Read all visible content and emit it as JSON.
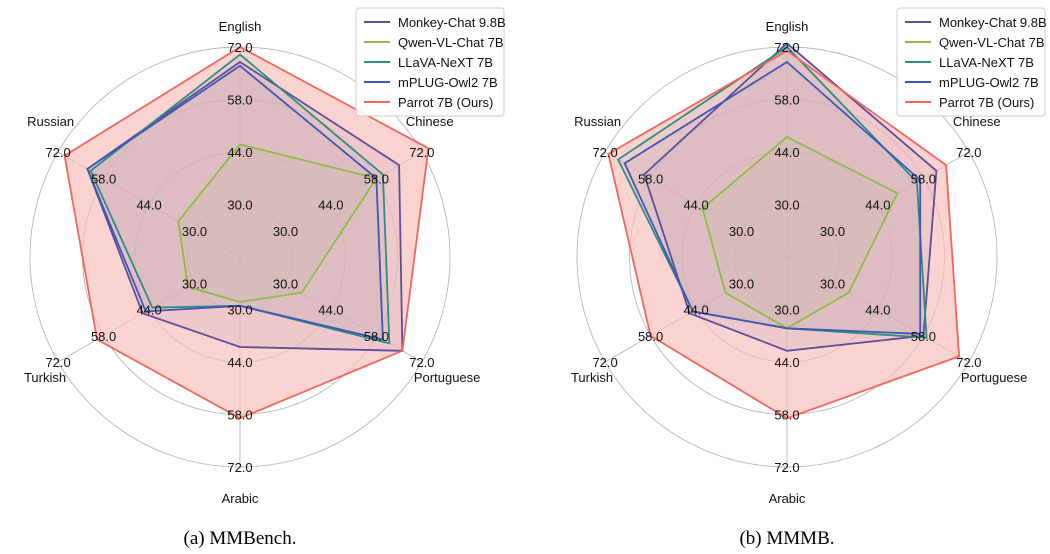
{
  "chart_data": [
    {
      "type": "radar",
      "caption": "(a) MMBench.",
      "axes": [
        "English",
        "Chinese",
        "Portuguese",
        "Arabic",
        "Turkish",
        "Russian"
      ],
      "rlim": [
        16,
        72
      ],
      "ticks": [
        30.0,
        44.0,
        58.0,
        72.0
      ],
      "tick_labels": [
        "30.0",
        "44.0",
        "58.0",
        "72.0"
      ],
      "grid": true,
      "legend_position": "top-right",
      "series": [
        {
          "name": "Monkey-Chat 9.8B",
          "color": "#5b4f9a",
          "values": [
            68,
            65,
            66,
            40,
            46,
            63
          ]
        },
        {
          "name": "Qwen-VL-Chat 7B",
          "color": "#8fbb48",
          "values": [
            46,
            58,
            35,
            28,
            32,
            35
          ]
        },
        {
          "name": "LLaVA-NeXT 7B",
          "color": "#2b8f80",
          "values": [
            70,
            60,
            62,
            29,
            43,
            62
          ]
        },
        {
          "name": "mPLUG-Owl2 7B",
          "color": "#3f57b5",
          "values": [
            67,
            58,
            60,
            29,
            45,
            63
          ]
        },
        {
          "name": "Parrot 7B (Ours)",
          "color": "#f2665c",
          "fill": "#f9c2be",
          "values": [
            72,
            74,
            66,
            59,
            60,
            70
          ]
        }
      ]
    },
    {
      "type": "radar",
      "caption": "(b) MMMB.",
      "axes": [
        "English",
        "Chinese",
        "Portuguese",
        "Arabic",
        "Turkish",
        "Russian"
      ],
      "rlim": [
        16,
        72
      ],
      "ticks": [
        30.0,
        44.0,
        58.0,
        72.0
      ],
      "tick_labels": [
        "30.0",
        "44.0",
        "58.0",
        "72.0"
      ],
      "grid": true,
      "legend_position": "top-right",
      "series": [
        {
          "name": "Monkey-Chat 9.8B",
          "color": "#5b4f9a",
          "values": [
            73,
            62,
            58,
            41,
            46,
            60
          ]
        },
        {
          "name": "Qwen-VL-Chat 7B",
          "color": "#8fbb48",
          "values": [
            48,
            50,
            35,
            35,
            35,
            42
          ]
        },
        {
          "name": "LLaVA-NeXT 7B",
          "color": "#2b8f80",
          "values": [
            72,
            56,
            59,
            35,
            45,
            68
          ]
        },
        {
          "name": "mPLUG-Owl2 7B",
          "color": "#3f57b5",
          "values": [
            68,
            57,
            57,
            35,
            45,
            66
          ]
        },
        {
          "name": "Parrot 7B (Ours)",
          "color": "#f2665c",
          "fill": "#f9c2be",
          "values": [
            71,
            65,
            69,
            59,
            58,
            71
          ]
        }
      ]
    }
  ]
}
